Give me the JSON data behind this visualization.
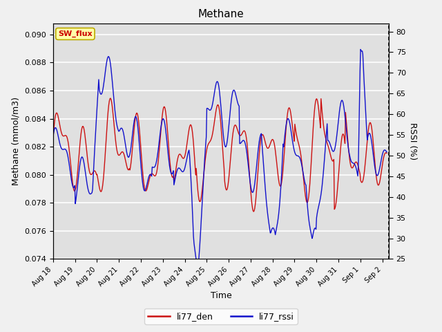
{
  "title": "Methane",
  "xlabel": "Time",
  "ylabel_left": "Methane (mmol/m3)",
  "ylabel_right": "RSSI (%)",
  "ylim_left": [
    0.074,
    0.0908
  ],
  "ylim_right": [
    25,
    82
  ],
  "background_color": "#f0f0f0",
  "plot_bg_color": "#e0e0e0",
  "legend_labels": [
    "li77_den",
    "li77_rssi"
  ],
  "sw_flux_label": "SW_flux",
  "sw_flux_facecolor": "#ffffaa",
  "sw_flux_edgecolor": "#bbaa00",
  "sw_flux_text_color": "#cc0000",
  "line_color_red": "#cc1111",
  "line_color_blue": "#1111cc",
  "x_start": 18.0,
  "x_end": 33.3,
  "x_ticks": [
    18,
    19,
    20,
    21,
    22,
    23,
    24,
    25,
    26,
    27,
    28,
    29,
    30,
    31,
    32,
    33
  ],
  "x_tick_labels": [
    "Aug 18",
    "Aug 19",
    "Aug 20",
    "Aug 21",
    "Aug 22",
    "Aug 23",
    "Aug 24",
    "Aug 25",
    "Aug 26",
    "Aug 27",
    "Aug 28",
    "Aug 29",
    "Aug 30",
    "Aug 31",
    "Sep 1",
    "Sep 2"
  ],
  "yticks_left": [
    0.074,
    0.076,
    0.078,
    0.08,
    0.082,
    0.084,
    0.086,
    0.088,
    0.09
  ],
  "yticks_right": [
    25,
    30,
    35,
    40,
    45,
    50,
    55,
    60,
    65,
    70,
    75,
    80
  ]
}
